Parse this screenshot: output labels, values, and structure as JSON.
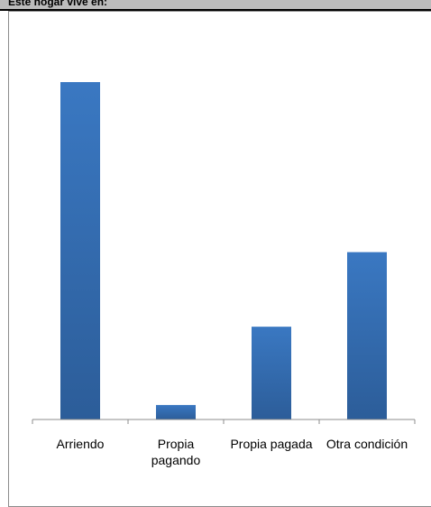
{
  "header": {
    "title": "Este hogar vive en:"
  },
  "chart_data": {
    "type": "bar",
    "title": "",
    "xlabel": "",
    "ylabel": "",
    "categories": [
      [
        "Arriendo"
      ],
      [
        "Propia",
        "pagando"
      ],
      [
        "Propia pagada"
      ],
      [
        "Otra condición"
      ]
    ],
    "values": [
      100,
      4.3,
      27.5,
      49.6
    ],
    "ylim": [
      0,
      100
    ],
    "grid": false,
    "legend": "none",
    "bar_color": "#3a78c2",
    "bar_color_dark": "#2c5d99"
  }
}
